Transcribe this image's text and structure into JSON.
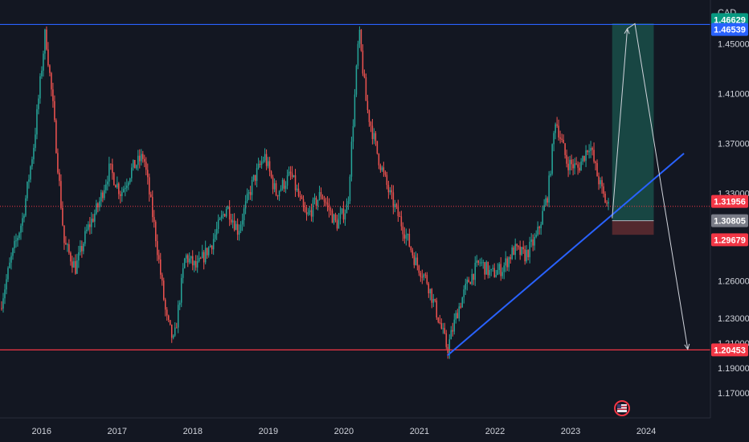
{
  "chart_data": {
    "type": "candlestick",
    "currency_label": "CAD",
    "x_axis": {
      "range": [
        2015.45,
        2024.85
      ],
      "ticks": [
        "2016",
        "2017",
        "2018",
        "2019",
        "2020",
        "2021",
        "2022",
        "2023",
        "2024"
      ]
    },
    "y_axis": {
      "range": [
        1.15,
        1.485
      ],
      "ticks": [
        "1.45000",
        "1.41000",
        "1.37000",
        "1.33000",
        "1.26000",
        "1.23000",
        "1.21000",
        "1.19000",
        "1.17000"
      ]
    },
    "grid": false,
    "price_series": [
      [
        2015.45,
        1.238
      ],
      [
        2015.6,
        1.278
      ],
      [
        2015.75,
        1.31
      ],
      [
        2015.9,
        1.37
      ],
      [
        2016.05,
        1.46
      ],
      [
        2016.15,
        1.4
      ],
      [
        2016.3,
        1.29
      ],
      [
        2016.45,
        1.27
      ],
      [
        2016.6,
        1.3
      ],
      [
        2016.75,
        1.32
      ],
      [
        2016.9,
        1.35
      ],
      [
        2017.05,
        1.33
      ],
      [
        2017.2,
        1.35
      ],
      [
        2017.35,
        1.36
      ],
      [
        2017.5,
        1.3
      ],
      [
        2017.65,
        1.23
      ],
      [
        2017.75,
        1.21
      ],
      [
        2017.9,
        1.28
      ],
      [
        2018.05,
        1.27
      ],
      [
        2018.25,
        1.29
      ],
      [
        2018.45,
        1.32
      ],
      [
        2018.6,
        1.3
      ],
      [
        2018.8,
        1.34
      ],
      [
        2018.95,
        1.36
      ],
      [
        2019.1,
        1.33
      ],
      [
        2019.3,
        1.345
      ],
      [
        2019.5,
        1.31
      ],
      [
        2019.7,
        1.33
      ],
      [
        2019.9,
        1.305
      ],
      [
        2020.05,
        1.32
      ],
      [
        2020.2,
        1.46
      ],
      [
        2020.3,
        1.4
      ],
      [
        2020.45,
        1.36
      ],
      [
        2020.6,
        1.33
      ],
      [
        2020.8,
        1.3
      ],
      [
        2020.95,
        1.275
      ],
      [
        2021.1,
        1.26
      ],
      [
        2021.25,
        1.23
      ],
      [
        2021.37,
        1.205
      ],
      [
        2021.5,
        1.235
      ],
      [
        2021.65,
        1.26
      ],
      [
        2021.8,
        1.275
      ],
      [
        2021.95,
        1.265
      ],
      [
        2022.1,
        1.27
      ],
      [
        2022.25,
        1.285
      ],
      [
        2022.4,
        1.28
      ],
      [
        2022.55,
        1.295
      ],
      [
        2022.7,
        1.33
      ],
      [
        2022.8,
        1.39
      ],
      [
        2022.95,
        1.355
      ],
      [
        2023.1,
        1.35
      ],
      [
        2023.25,
        1.37
      ],
      [
        2023.35,
        1.345
      ],
      [
        2023.45,
        1.325
      ],
      [
        2023.5,
        1.3196
      ]
    ],
    "horizontal_lines": [
      {
        "price": 1.46539,
        "color": "#2962ff"
      },
      {
        "price": 1.20453,
        "color": "#f23645"
      },
      {
        "price": 1.31956,
        "color": "#f23645",
        "style": "dotted"
      }
    ],
    "trendline": {
      "from": [
        2021.37,
        1.2
      ],
      "to": [
        2024.5,
        1.362
      ],
      "color": "#2962ff"
    },
    "position": {
      "start": 2023.55,
      "end": 2024.1,
      "entry": 1.30805,
      "target": 1.46629,
      "stop": 1.29679
    },
    "projection_path": [
      [
        2023.55,
        1.31
      ],
      [
        2023.75,
        1.462
      ],
      [
        2023.85,
        1.466
      ],
      [
        2024.55,
        1.205
      ]
    ],
    "price_labels": [
      {
        "text": "1.46629",
        "price": 1.46929,
        "bg": "#089981"
      },
      {
        "text": "1.46539",
        "price": 1.46139,
        "bg": "#2962ff"
      },
      {
        "text": "1.31956",
        "price": 1.32356,
        "bg": "#f23645"
      },
      {
        "text": "1.30805",
        "price": 1.30805,
        "bg": "#787b86"
      },
      {
        "text": "1.29679",
        "price": 1.29279,
        "bg": "#f23645"
      },
      {
        "text": "1.20453",
        "price": 1.20453,
        "bg": "#f23645"
      }
    ],
    "colors": {
      "background": "#131722",
      "up": "#26a69a",
      "down": "#ef5350",
      "profit_zone": "#1a4b47",
      "loss_zone": "#5b2a30",
      "axis_text": "#d1d4dc",
      "projection": "#d1d4dc"
    }
  }
}
